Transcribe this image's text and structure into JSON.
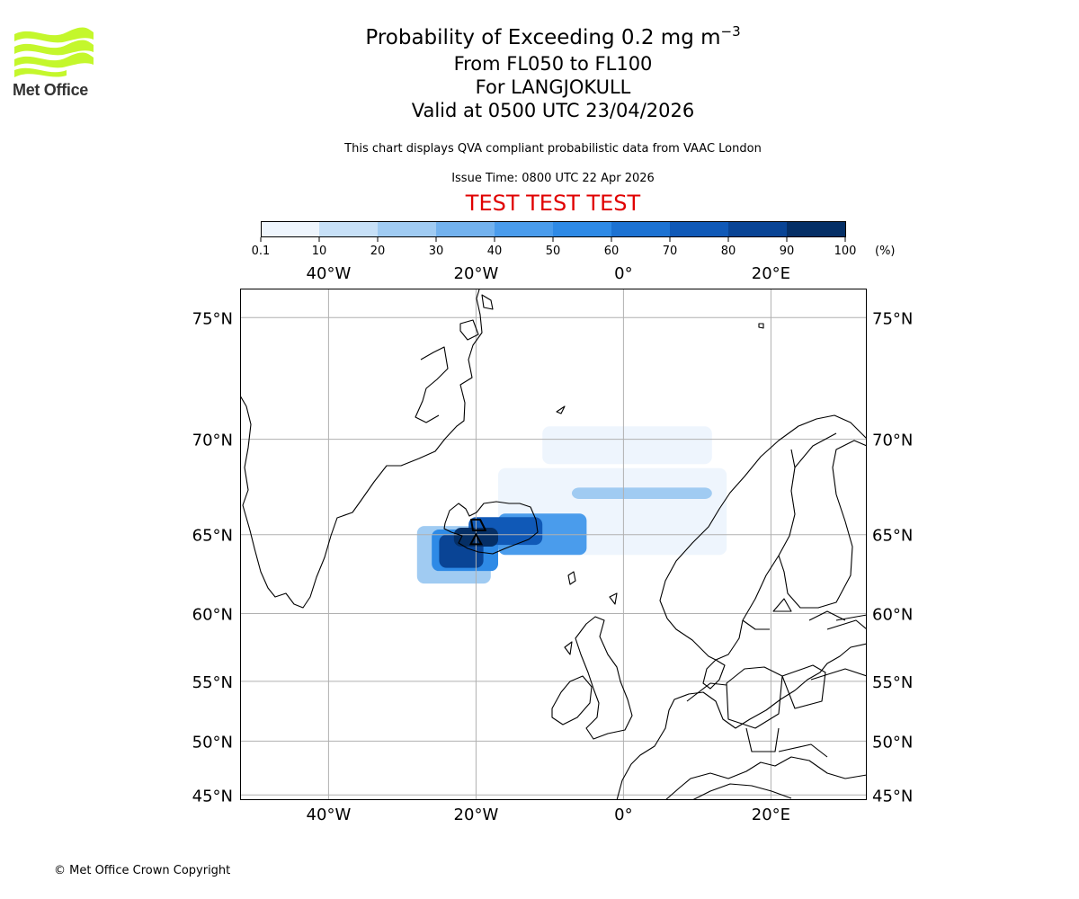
{
  "branding": {
    "logo_text": "Met Office",
    "logo_color": "#c4f72c"
  },
  "title": {
    "line1_main": "Probability of Exceeding 0.2 mg m",
    "line1_sup": "−3",
    "line2": "From FL050 to FL100",
    "line3": "For LANGJOKULL",
    "line4": "Valid at 0500 UTC 23/04/2026"
  },
  "description": "This chart displays QVA compliant probabilistic data from VAAC London",
  "issue_time": "Issue Time: 0800 UTC 22 Apr 2026",
  "test_banner": "TEST TEST TEST",
  "colorbar": {
    "ticks": [
      "0.1",
      "10",
      "20",
      "30",
      "40",
      "50",
      "60",
      "70",
      "80",
      "90",
      "100"
    ],
    "unit": "(%)",
    "colors": [
      "#eef5fd",
      "#c7e0f7",
      "#a0cbf2",
      "#73b2ee",
      "#4a9cec",
      "#2e8ae6",
      "#1c72d2",
      "#1059b7",
      "#094495",
      "#052f66"
    ]
  },
  "map": {
    "x_ticks": [
      "40°W",
      "20°W",
      "0°",
      "20°E"
    ],
    "y_ticks": [
      "75°N",
      "70°N",
      "65°N",
      "60°N",
      "55°N",
      "50°N",
      "45°N"
    ],
    "grid": true,
    "volcano_marker": "triangle"
  },
  "chart_data": {
    "type": "heatmap",
    "variable": "Probability of exceeding 0.2 mg m−3 (%)",
    "xlim": [
      -52,
      33
    ],
    "ylim": [
      44.5,
      76
    ],
    "x_unit": "longitude (°)",
    "y_unit": "latitude (°)",
    "volcano": {
      "name": "LANGJOKULL",
      "lon": -20,
      "lat": 64.7
    },
    "regions": [
      {
        "lon_min": -11,
        "lon_max": 12,
        "lat_min": 68.8,
        "lat_max": 70.6,
        "probability": 5
      },
      {
        "lon_min": -17,
        "lon_max": 14,
        "lat_min": 63.8,
        "lat_max": 68.6,
        "probability": 8
      },
      {
        "lon_min": -28,
        "lon_max": -18,
        "lat_min": 62.0,
        "lat_max": 65.5,
        "probability": 20
      },
      {
        "lon_min": -7,
        "lon_max": 12,
        "lat_min": 67.0,
        "lat_max": 67.6,
        "probability": 25
      },
      {
        "lon_min": -17,
        "lon_max": -5,
        "lat_min": 63.8,
        "lat_max": 66.2,
        "probability": 40
      },
      {
        "lon_min": -26,
        "lon_max": -17,
        "lat_min": 62.8,
        "lat_max": 65.3,
        "probability": 55
      },
      {
        "lon_min": -21,
        "lon_max": -11,
        "lat_min": 64.4,
        "lat_max": 66.0,
        "probability": 75
      },
      {
        "lon_min": -25,
        "lon_max": -19,
        "lat_min": 63.0,
        "lat_max": 65.0,
        "probability": 85
      },
      {
        "lon_min": -23,
        "lon_max": -17,
        "lat_min": 64.3,
        "lat_max": 65.4,
        "probability": 95
      }
    ]
  },
  "footer": {
    "copyright": "© Met Office Crown Copyright"
  }
}
